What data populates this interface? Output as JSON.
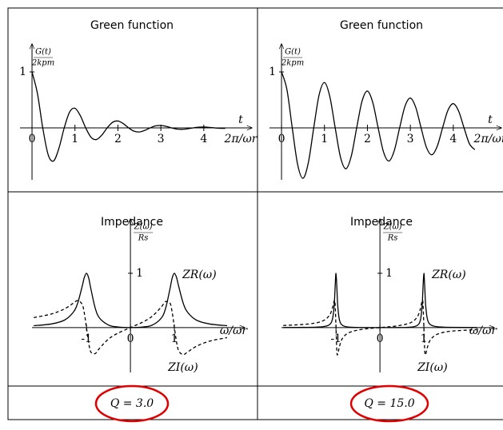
{
  "chart_data": [
    {
      "type": "line",
      "title": "Green function",
      "ylabel": {
        "numerator": "G(t)",
        "denominator": "2kpm"
      },
      "xlabel": "t",
      "xunit": "2π/ωr",
      "x": [
        0,
        0.125,
        0.25,
        0.375,
        0.5,
        0.625,
        0.75,
        0.875,
        1,
        1.125,
        1.25,
        1.375,
        1.5,
        1.625,
        1.75,
        1.875,
        2,
        2.125,
        2.25,
        2.375,
        2.5,
        2.625,
        2.75,
        2.875,
        3,
        3.125,
        3.25,
        3.375,
        3.5,
        3.625,
        3.75,
        3.875,
        4,
        4.125,
        4.25,
        4.375,
        4.5
      ],
      "series": [
        {
          "color": "#000000",
          "linestyle": "solid",
          "values": [
            1,
            0.62,
            0,
            -0.477,
            -0.592,
            -0.368,
            0,
            0.283,
            0.351,
            0.218,
            0,
            -0.168,
            -0.208,
            -0.129,
            0,
            0.099,
            0.123,
            0.076,
            0,
            -0.059,
            -0.073,
            -0.045,
            0,
            0.035,
            0.043,
            0.027,
            0,
            -0.021,
            -0.026,
            -0.016,
            0,
            0.012,
            0.015,
            0.009,
            0,
            -0.007,
            -0.009
          ]
        }
      ],
      "xlim": [
        -0.28,
        5.12
      ],
      "ylim": [
        -1,
        1.5
      ],
      "xticks": [
        0,
        1,
        2,
        3,
        4
      ],
      "yticks": [
        1
      ]
    },
    {
      "type": "line",
      "title": "Green function",
      "ylabel": {
        "numerator": "G(t)",
        "denominator": "2kpm"
      },
      "xlabel": "t",
      "xunit": "2π/ωr",
      "x": [
        0,
        0.125,
        0.25,
        0.375,
        0.5,
        0.625,
        0.75,
        0.875,
        1,
        1.125,
        1.25,
        1.375,
        1.5,
        1.625,
        1.75,
        1.875,
        2,
        2.125,
        2.25,
        2.375,
        2.5,
        2.625,
        2.75,
        2.875,
        3,
        3.125,
        3.25,
        3.375,
        3.5,
        3.625,
        3.75,
        3.875,
        4,
        4.125,
        4.25,
        4.375,
        4.5
      ],
      "series": [
        {
          "color": "#000000",
          "linestyle": "solid",
          "values": [
            1,
            0.689,
            0,
            -0.654,
            -0.901,
            -0.62,
            0,
            0.589,
            0.811,
            0.559,
            0,
            -0.53,
            -0.731,
            -0.503,
            0,
            0.478,
            0.658,
            0.453,
            0,
            -0.43,
            -0.593,
            -0.408,
            0,
            0.387,
            0.533,
            0.367,
            0,
            -0.349,
            -0.481,
            -0.331,
            0,
            0.314,
            0.433,
            0.298,
            0,
            -0.283,
            -0.39
          ]
        }
      ],
      "xlim": [
        -0.28,
        5.12
      ],
      "ylim": [
        -1,
        1.5
      ],
      "xticks": [
        0,
        1,
        2,
        3,
        4
      ],
      "yticks": [
        1
      ]
    },
    {
      "type": "line",
      "title": "Impedance",
      "ylabel": {
        "numerator": "Z(ω)",
        "denominator": "Rs"
      },
      "xlabel": "ω/ωr",
      "x": [
        -2.2,
        -1.8,
        -1.5,
        -1.3,
        -1.2,
        -1.1,
        -1.05,
        -1,
        -0.95,
        -0.9,
        -0.8,
        -0.7,
        -0.5,
        -0.3,
        0,
        0.3,
        0.5,
        0.7,
        0.8,
        0.9,
        0.95,
        1,
        1.05,
        1.1,
        1.2,
        1.3,
        1.5,
        1.8,
        2.2
      ],
      "series": [
        {
          "name": "ZR(ω)",
          "color": "#000000",
          "linestyle": "solid",
          "values": [
            0.035,
            0.067,
            0.138,
            0.283,
            0.452,
            0.753,
            0.921,
            1,
            0.913,
            0.714,
            0.354,
            0.173,
            0.047,
            0.012,
            0,
            0.012,
            0.047,
            0.173,
            0.354,
            0.714,
            0.913,
            1,
            0.921,
            0.753,
            0.452,
            0.283,
            0.138,
            0.067,
            0.035
          ]
        },
        {
          "name": "ZI(ω)",
          "color": "#000000",
          "linestyle": "dashed",
          "values": [
            0.184,
            0.25,
            0.345,
            0.45,
            0.498,
            0.431,
            0.27,
            0,
            -0.281,
            -0.452,
            -0.478,
            -0.378,
            -0.212,
            -0.109,
            0,
            0.109,
            0.212,
            0.378,
            0.478,
            0.452,
            0.281,
            0,
            -0.27,
            -0.431,
            -0.498,
            -0.45,
            -0.345,
            -0.25,
            -0.184
          ]
        }
      ],
      "xlim": [
        -2.24,
        2.6
      ],
      "ylim": [
        -0.9,
        2.0
      ],
      "xticks": [
        -1,
        0,
        1
      ],
      "yticks": [
        1
      ]
    },
    {
      "type": "line",
      "title": "Impedance",
      "ylabel": {
        "numerator": "Z(ω)",
        "denominator": "Rs"
      },
      "xlabel": "ω/ωr",
      "x": [
        -2.2,
        -1.6,
        -1.3,
        -1.15,
        -1.08,
        -1.04,
        -1.02,
        -1,
        -0.98,
        -0.96,
        -0.92,
        -0.85,
        -0.7,
        -0.4,
        0,
        0.4,
        0.7,
        0.85,
        0.92,
        0.96,
        0.98,
        1,
        1.02,
        1.04,
        1.08,
        1.15,
        1.3,
        1.6,
        2.2
      ],
      "series": [
        {
          "name": "ZR(ω)",
          "color": "#000000",
          "linestyle": "solid",
          "values": [
            0.001,
            0.005,
            0.016,
            0.053,
            0.158,
            0.419,
            0.739,
            1,
            0.732,
            0.4,
            0.137,
            0.04,
            0.008,
            0.001,
            0,
            0.001,
            0.008,
            0.04,
            0.137,
            0.4,
            0.732,
            1,
            0.739,
            0.419,
            0.158,
            0.053,
            0.016,
            0.005,
            0.001
          ]
        },
        {
          "name": "ZI(ω)",
          "color": "#000000",
          "linestyle": "dashed",
          "values": [
            0.038,
            0.068,
            0.124,
            0.225,
            0.364,
            0.493,
            0.439,
            0,
            -0.443,
            -0.49,
            -0.344,
            -0.196,
            -0.091,
            -0.032,
            0,
            0.032,
            0.091,
            0.196,
            0.344,
            0.49,
            0.443,
            0,
            -0.439,
            -0.493,
            -0.364,
            -0.225,
            -0.124,
            -0.068,
            -0.038
          ]
        }
      ],
      "xlim": [
        -2.24,
        2.6
      ],
      "ylim": [
        -0.9,
        2.0
      ],
      "xticks": [
        -1,
        0,
        1
      ],
      "yticks": [
        1
      ]
    }
  ],
  "captions": [
    "Q = 3.0",
    "Q = 15.0"
  ]
}
